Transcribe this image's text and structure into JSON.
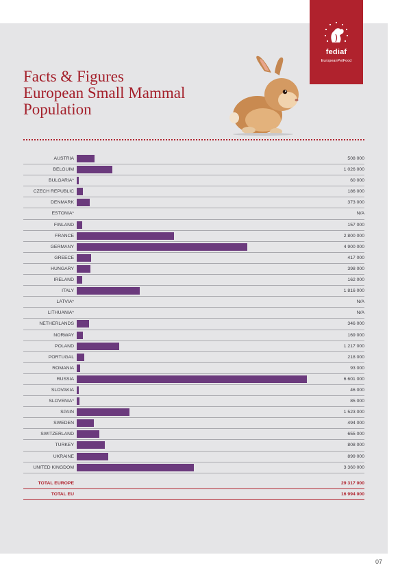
{
  "header": {
    "title_lines": [
      "Facts & Figures",
      "European Small Mammal",
      "Population"
    ]
  },
  "logo": {
    "name": "fediaf",
    "subtitle": "EuropeanPetFood",
    "icon": "dog-cat-silhouette-icon"
  },
  "illustration": {
    "icon": "rabbit-icon"
  },
  "colors": {
    "bar": "#6b3a7d",
    "accent": "#b0222d",
    "panel": "#e5e5e7"
  },
  "chart_data": {
    "type": "bar",
    "orientation": "horizontal",
    "xlim": [
      0,
      7000000
    ],
    "grid": false,
    "categories": [
      "AUSTRIA",
      "BELGUIM",
      "BULGARIA*",
      "CZECH REPUBLIC",
      "DENMARK",
      "ESTONIA*",
      "FINLAND",
      "FRANCE",
      "GERMANY",
      "GREECE",
      "HUNGARY",
      "IRELAND",
      "ITALY",
      "LATVIA*",
      "LITHUANIA*",
      "NETHERLANDS",
      "NORWAY",
      "POLAND",
      "PORTUGAL",
      "ROMANIA",
      "RUSSIA",
      "SLOVAKIA",
      "SLOVENIA*",
      "SPAIN",
      "SWEDEN",
      "SWITZERLAND",
      "TURKEY",
      "UKRAINE",
      "UNITED KINGDOM"
    ],
    "values": [
      508000,
      1026000,
      60000,
      186000,
      373000,
      null,
      157000,
      2800000,
      4900000,
      417000,
      398000,
      162000,
      1816000,
      null,
      null,
      346000,
      169000,
      1217000,
      218000,
      93000,
      6601000,
      46000,
      85000,
      1523000,
      494000,
      655000,
      808000,
      899000,
      3360000
    ],
    "value_labels": [
      "508 000",
      "1 026 000",
      "60 000",
      "186 000",
      "373 000",
      "N/A",
      "157 000",
      "2 800 000",
      "4 900 000",
      "417 000",
      "398 000",
      "162 000",
      "1 816 000",
      "N/A",
      "N/A",
      "346 000",
      "169 000",
      "1 217 000",
      "218 000",
      "93 000",
      "6 601 000",
      "46 000",
      "85 000",
      "1 523 000",
      "494 000",
      "655 000",
      "808 000",
      "899 000",
      "3 360 000"
    ],
    "totals": [
      {
        "label": "TOTAL EUROPE",
        "value": 29317000,
        "value_label": "29 317 000"
      },
      {
        "label": "TOTAL EU",
        "value": 16994000,
        "value_label": "16 994 000"
      }
    ]
  },
  "footer": {
    "page_number": "07"
  }
}
